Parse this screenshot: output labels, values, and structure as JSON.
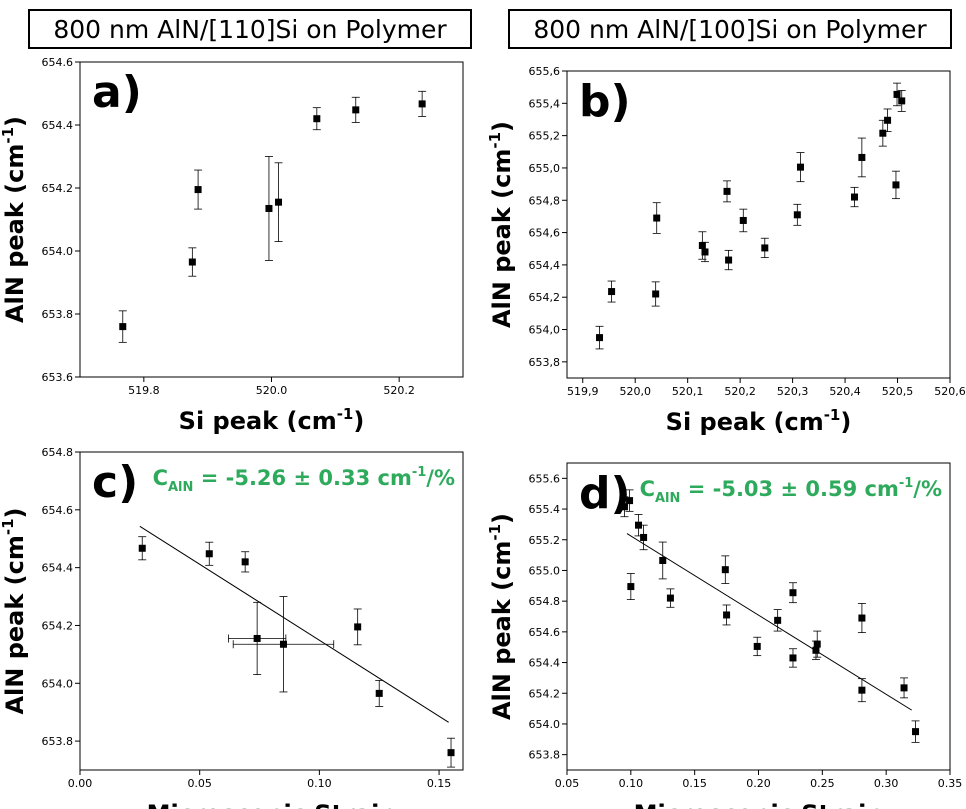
{
  "headers": [
    "800 nm AlN/[110]Si on Polymer",
    "800 nm AlN/[100]Si on Polymer"
  ],
  "colors": {
    "annotation": "#2eaa5c",
    "marker": "#000000",
    "fit_line": "#000000"
  },
  "chart_data": [
    {
      "id": "a",
      "type": "scatter",
      "panel_label": "a)",
      "xlabel": "Si peak (cm",
      "xlabel_sup": "-1",
      "xlabel_end": ")",
      "ylabel": "AlN peak (cm",
      "ylabel_sup": "-1",
      "ylabel_end": ")",
      "xlim": [
        519.7,
        520.3
      ],
      "ylim": [
        653.6,
        654.6
      ],
      "xticks": [
        519.8,
        520.0,
        520.2
      ],
      "xtick_labels": [
        "519.8",
        "520.0",
        "520.2"
      ],
      "yticks": [
        653.6,
        653.8,
        654.0,
        654.2,
        654.4,
        654.6
      ],
      "ytick_labels": [
        "653.6",
        "653.8",
        "654.0",
        "654.2",
        "654.4",
        "654.6"
      ],
      "points": [
        {
          "x": 519.767,
          "y": 653.76,
          "yerr": 0.05
        },
        {
          "x": 519.876,
          "y": 653.965,
          "yerr": 0.045
        },
        {
          "x": 519.885,
          "y": 654.195,
          "yerr": 0.062
        },
        {
          "x": 519.996,
          "y": 654.135,
          "yerr": 0.165
        },
        {
          "x": 520.011,
          "y": 654.155,
          "yerr": 0.125
        },
        {
          "x": 520.071,
          "y": 654.42,
          "yerr": 0.035
        },
        {
          "x": 520.132,
          "y": 654.448,
          "yerr": 0.04
        },
        {
          "x": 520.236,
          "y": 654.467,
          "yerr": 0.04
        }
      ]
    },
    {
      "id": "b",
      "type": "scatter",
      "panel_label": "b)",
      "xlabel": "Si peak (cm",
      "xlabel_sup": "-1",
      "xlabel_end": ")",
      "ylabel": "AlN peak (cm",
      "ylabel_sup": "-1",
      "ylabel_end": ")",
      "xlim": [
        519.87,
        520.6
      ],
      "ylim": [
        653.7,
        655.6
      ],
      "xticks": [
        519.9,
        520.0,
        520.1,
        520.2,
        520.3,
        520.4,
        520.5,
        520.6
      ],
      "xtick_labels": [
        "519,9",
        "520,0",
        "520,1",
        "520,2",
        "520,3",
        "520,4",
        "520,5",
        "520,6"
      ],
      "yticks": [
        653.8,
        654.0,
        654.2,
        654.4,
        654.6,
        654.8,
        655.0,
        655.2,
        655.4,
        655.6
      ],
      "ytick_labels": [
        "653,8",
        "654,0",
        "654,2",
        "654,4",
        "654,6",
        "654,8",
        "655,0",
        "655,2",
        "655,4",
        "655,6"
      ],
      "points": [
        {
          "x": 519.932,
          "y": 653.95,
          "yerr": 0.07
        },
        {
          "x": 519.955,
          "y": 654.235,
          "yerr": 0.065
        },
        {
          "x": 520.039,
          "y": 654.22,
          "yerr": 0.075
        },
        {
          "x": 520.041,
          "y": 654.69,
          "yerr": 0.095
        },
        {
          "x": 520.128,
          "y": 654.52,
          "yerr": 0.085
        },
        {
          "x": 520.133,
          "y": 654.48,
          "yerr": 0.06
        },
        {
          "x": 520.175,
          "y": 654.855,
          "yerr": 0.065
        },
        {
          "x": 520.178,
          "y": 654.43,
          "yerr": 0.06
        },
        {
          "x": 520.206,
          "y": 654.675,
          "yerr": 0.07
        },
        {
          "x": 520.247,
          "y": 654.505,
          "yerr": 0.06
        },
        {
          "x": 520.309,
          "y": 654.71,
          "yerr": 0.065
        },
        {
          "x": 520.315,
          "y": 655.005,
          "yerr": 0.09
        },
        {
          "x": 520.418,
          "y": 654.82,
          "yerr": 0.06
        },
        {
          "x": 520.432,
          "y": 655.065,
          "yerr": 0.12
        },
        {
          "x": 520.472,
          "y": 655.215,
          "yerr": 0.08
        },
        {
          "x": 520.481,
          "y": 655.295,
          "yerr": 0.07
        },
        {
          "x": 520.497,
          "y": 654.895,
          "yerr": 0.085
        },
        {
          "x": 520.499,
          "y": 655.455,
          "yerr": 0.07
        },
        {
          "x": 520.508,
          "y": 655.415,
          "yerr": 0.065
        }
      ]
    },
    {
      "id": "c",
      "type": "scatter",
      "panel_label": "c)",
      "annotation_main": "C",
      "annotation_sub": "AlN",
      "annotation_rest": " = -5.26 ± 0.33 cm",
      "annotation_sup": "-1",
      "annotation_end": "/%",
      "xlabel": "Microscopic Strain",
      "ylabel": "AlN peak (cm",
      "ylabel_sup": "-1",
      "ylabel_end": ")",
      "xlim": [
        0.0,
        0.16
      ],
      "ylim": [
        653.7,
        654.8
      ],
      "xticks": [
        0.0,
        0.05,
        0.1,
        0.15
      ],
      "xtick_labels": [
        "0.00",
        "0.05",
        "0.10",
        "0.15"
      ],
      "yticks": [
        653.8,
        654.0,
        654.2,
        654.4,
        654.6,
        654.8
      ],
      "ytick_labels": [
        "653.8",
        "654.0",
        "654.2",
        "654.4",
        "654.6",
        "654.8"
      ],
      "points": [
        {
          "x": 0.026,
          "y": 654.467,
          "yerr": 0.04
        },
        {
          "x": 0.054,
          "y": 654.448,
          "yerr": 0.04
        },
        {
          "x": 0.069,
          "y": 654.42,
          "yerr": 0.035
        },
        {
          "x": 0.074,
          "y": 654.155,
          "yerr": 0.125,
          "xerr": 0.012
        },
        {
          "x": 0.085,
          "y": 654.135,
          "yerr": 0.165,
          "xerr": 0.021
        },
        {
          "x": 0.116,
          "y": 654.195,
          "yerr": 0.062
        },
        {
          "x": 0.125,
          "y": 653.965,
          "yerr": 0.045
        },
        {
          "x": 0.155,
          "y": 653.76,
          "yerr": 0.05
        }
      ],
      "fit": {
        "x1": 0.025,
        "y1": 654.543,
        "x2": 0.154,
        "y2": 653.865
      }
    },
    {
      "id": "d",
      "type": "scatter",
      "panel_label": "d)",
      "annotation_main": "C",
      "annotation_sub": "AlN",
      "annotation_rest": " = -5.03 ± 0.59 cm",
      "annotation_sup": "-1",
      "annotation_end": "/%",
      "xlabel": "Microscopic Strain",
      "ylabel": "AlN peak (cm",
      "ylabel_sup": "-1",
      "ylabel_end": ")",
      "xlim": [
        0.05,
        0.35
      ],
      "ylim": [
        653.7,
        655.7
      ],
      "xticks": [
        0.05,
        0.1,
        0.15,
        0.2,
        0.25,
        0.3,
        0.35
      ],
      "xtick_labels": [
        "0.05",
        "0.10",
        "0.15",
        "0.20",
        "0.25",
        "0.30",
        "0.35"
      ],
      "yticks": [
        653.8,
        654.0,
        654.2,
        654.4,
        654.6,
        654.8,
        655.0,
        655.2,
        655.4,
        655.6
      ],
      "ytick_labels": [
        "653.8",
        "654.0",
        "654.2",
        "654.4",
        "654.6",
        "654.8",
        "655.0",
        "655.2",
        "655.4",
        "655.6"
      ],
      "points": [
        {
          "x": 0.095,
          "y": 655.415,
          "yerr": 0.065
        },
        {
          "x": 0.099,
          "y": 655.455,
          "yerr": 0.07
        },
        {
          "x": 0.1,
          "y": 654.895,
          "yerr": 0.085
        },
        {
          "x": 0.106,
          "y": 655.295,
          "yerr": 0.07
        },
        {
          "x": 0.11,
          "y": 655.215,
          "yerr": 0.08
        },
        {
          "x": 0.125,
          "y": 655.065,
          "yerr": 0.12
        },
        {
          "x": 0.131,
          "y": 654.82,
          "yerr": 0.06
        },
        {
          "x": 0.174,
          "y": 655.005,
          "yerr": 0.09
        },
        {
          "x": 0.175,
          "y": 654.71,
          "yerr": 0.065
        },
        {
          "x": 0.199,
          "y": 654.505,
          "yerr": 0.06
        },
        {
          "x": 0.215,
          "y": 654.675,
          "yerr": 0.07
        },
        {
          "x": 0.227,
          "y": 654.43,
          "yerr": 0.06
        },
        {
          "x": 0.227,
          "y": 654.855,
          "yerr": 0.065
        },
        {
          "x": 0.245,
          "y": 654.48,
          "yerr": 0.06
        },
        {
          "x": 0.246,
          "y": 654.52,
          "yerr": 0.085
        },
        {
          "x": 0.281,
          "y": 654.22,
          "yerr": 0.075
        },
        {
          "x": 0.281,
          "y": 654.69,
          "yerr": 0.095
        },
        {
          "x": 0.314,
          "y": 654.235,
          "yerr": 0.065
        },
        {
          "x": 0.323,
          "y": 653.95,
          "yerr": 0.07
        }
      ],
      "fit": {
        "x1": 0.097,
        "y1": 655.24,
        "x2": 0.32,
        "y2": 654.09
      }
    }
  ]
}
